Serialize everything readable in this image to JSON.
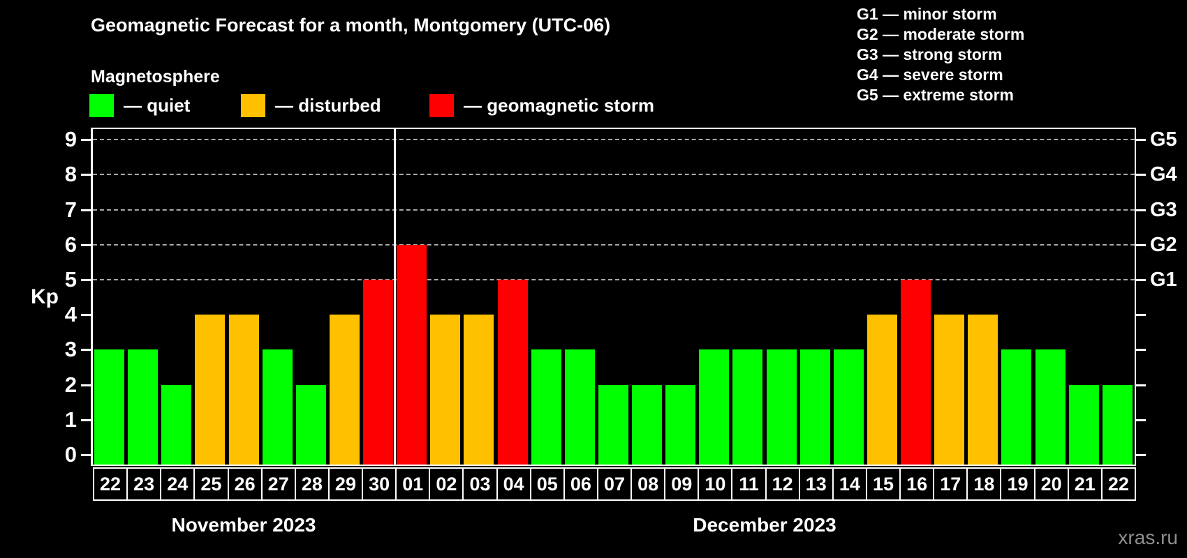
{
  "title": "Geomagnetic Forecast for a month, Montgomery (UTC-06)",
  "subtitle": "Magnetosphere",
  "legend": {
    "items": [
      {
        "status": "quiet",
        "label": "— quiet"
      },
      {
        "status": "disturbed",
        "label": "— disturbed"
      },
      {
        "status": "storm",
        "label": "— geomagnetic storm"
      }
    ]
  },
  "g_scale_legend": [
    "G1 — minor storm",
    "G2 — moderate storm",
    "G3 — strong storm",
    "G4 — severe storm",
    "G5 — extreme storm"
  ],
  "colors": {
    "quiet": "#00ff00",
    "disturbed": "#ffc000",
    "storm": "#ff0000",
    "grid": "#a8a8a8",
    "axis": "#ffffff",
    "watermark": "#8f8f8f",
    "background": "#000000"
  },
  "watermark": "xras.ru",
  "chart_data": {
    "type": "bar",
    "title": "Geomagnetic Forecast for a month, Montgomery (UTC-06)",
    "xlabel": "",
    "ylabel": "Kp",
    "ylim": [
      0,
      9
    ],
    "y_ticks": [
      0,
      1,
      2,
      3,
      4,
      5,
      6,
      7,
      8,
      9
    ],
    "gridlines_at": [
      5,
      6,
      7,
      8,
      9
    ],
    "grid": "dashed, storm levels only",
    "legend_position": "top-left",
    "right_axis_labels": [
      {
        "kp": 5,
        "label": "G1"
      },
      {
        "kp": 6,
        "label": "G2"
      },
      {
        "kp": 7,
        "label": "G3"
      },
      {
        "kp": 8,
        "label": "G4"
      },
      {
        "kp": 9,
        "label": "G5"
      }
    ],
    "months": [
      {
        "label": "November 2023",
        "days": [
          {
            "day": "22",
            "kp": 3,
            "status": "quiet"
          },
          {
            "day": "23",
            "kp": 3,
            "status": "quiet"
          },
          {
            "day": "24",
            "kp": 2,
            "status": "quiet"
          },
          {
            "day": "25",
            "kp": 4,
            "status": "disturbed"
          },
          {
            "day": "26",
            "kp": 4,
            "status": "disturbed"
          },
          {
            "day": "27",
            "kp": 3,
            "status": "quiet"
          },
          {
            "day": "28",
            "kp": 2,
            "status": "quiet"
          },
          {
            "day": "29",
            "kp": 4,
            "status": "disturbed"
          },
          {
            "day": "30",
            "kp": 5,
            "status": "storm"
          }
        ]
      },
      {
        "label": "December 2023",
        "days": [
          {
            "day": "01",
            "kp": 6,
            "status": "storm"
          },
          {
            "day": "02",
            "kp": 4,
            "status": "disturbed"
          },
          {
            "day": "03",
            "kp": 4,
            "status": "disturbed"
          },
          {
            "day": "04",
            "kp": 5,
            "status": "storm"
          },
          {
            "day": "05",
            "kp": 3,
            "status": "quiet"
          },
          {
            "day": "06",
            "kp": 3,
            "status": "quiet"
          },
          {
            "day": "07",
            "kp": 2,
            "status": "quiet"
          },
          {
            "day": "08",
            "kp": 2,
            "status": "quiet"
          },
          {
            "day": "09",
            "kp": 2,
            "status": "quiet"
          },
          {
            "day": "10",
            "kp": 3,
            "status": "quiet"
          },
          {
            "day": "11",
            "kp": 3,
            "status": "quiet"
          },
          {
            "day": "12",
            "kp": 3,
            "status": "quiet"
          },
          {
            "day": "13",
            "kp": 3,
            "status": "quiet"
          },
          {
            "day": "14",
            "kp": 3,
            "status": "quiet"
          },
          {
            "day": "15",
            "kp": 4,
            "status": "disturbed"
          },
          {
            "day": "16",
            "kp": 5,
            "status": "storm"
          },
          {
            "day": "17",
            "kp": 4,
            "status": "disturbed"
          },
          {
            "day": "18",
            "kp": 4,
            "status": "disturbed"
          },
          {
            "day": "19",
            "kp": 3,
            "status": "quiet"
          },
          {
            "day": "20",
            "kp": 3,
            "status": "quiet"
          },
          {
            "day": "21",
            "kp": 2,
            "status": "quiet"
          },
          {
            "day": "22",
            "kp": 2,
            "status": "quiet"
          }
        ]
      }
    ],
    "categories": [
      "22",
      "23",
      "24",
      "25",
      "26",
      "27",
      "28",
      "29",
      "30",
      "01",
      "02",
      "03",
      "04",
      "05",
      "06",
      "07",
      "08",
      "09",
      "10",
      "11",
      "12",
      "13",
      "14",
      "15",
      "16",
      "17",
      "18",
      "19",
      "20",
      "21",
      "22"
    ],
    "values": [
      3,
      3,
      2,
      4,
      4,
      3,
      2,
      4,
      5,
      6,
      4,
      4,
      5,
      3,
      3,
      2,
      2,
      2,
      3,
      3,
      3,
      3,
      3,
      4,
      5,
      4,
      4,
      3,
      3,
      2,
      2
    ],
    "statuses": [
      "quiet",
      "quiet",
      "quiet",
      "disturbed",
      "disturbed",
      "quiet",
      "quiet",
      "disturbed",
      "storm",
      "storm",
      "disturbed",
      "disturbed",
      "storm",
      "quiet",
      "quiet",
      "quiet",
      "quiet",
      "quiet",
      "quiet",
      "quiet",
      "quiet",
      "quiet",
      "quiet",
      "disturbed",
      "storm",
      "disturbed",
      "disturbed",
      "quiet",
      "quiet",
      "quiet",
      "quiet"
    ]
  }
}
